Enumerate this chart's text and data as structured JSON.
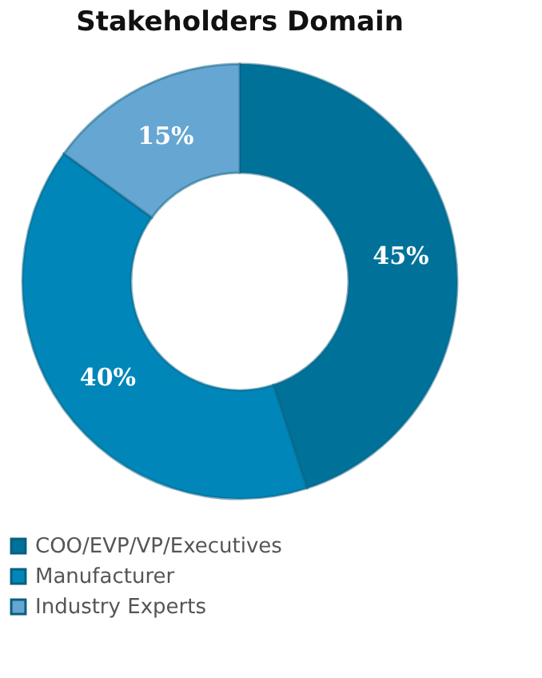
{
  "chart_data": {
    "type": "donut",
    "title": "Stakeholders Domain",
    "categories": [
      "COO/EVP/VP/Executives",
      "Manufacturer",
      "Industry Experts"
    ],
    "values": [
      45,
      40,
      15
    ],
    "colors": [
      "#00729a",
      "#0086b8",
      "#66a6d2"
    ],
    "value_labels": [
      "45%",
      "40%",
      "15%"
    ],
    "legend": "bottom"
  }
}
